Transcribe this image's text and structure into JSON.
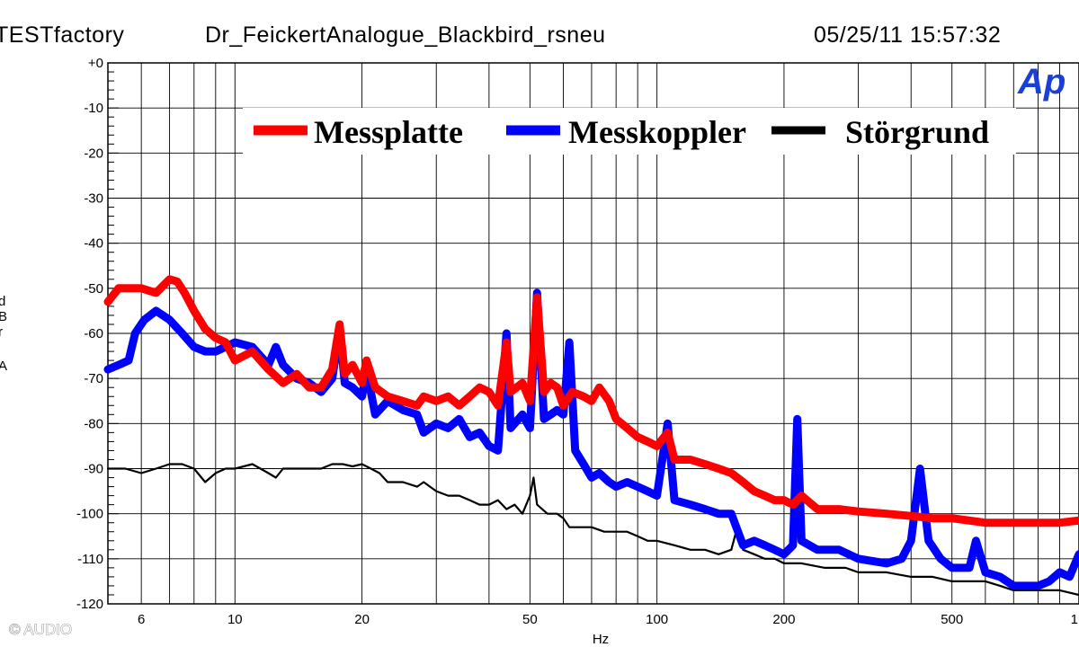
{
  "header": {
    "left": "TESTfactory",
    "center": "Dr_FeickertAnalogue_Blackbird_rsneu",
    "right": "05/25/11 15:57:32"
  },
  "logo": "Ap",
  "copyright": "© AUDIO",
  "y_label_fragment": [
    "d",
    "B",
    "r",
    "A"
  ],
  "colors": {
    "Messplatte": "#ff0000",
    "Messkoppler": "#0000ff",
    "Störgrund": "#000000"
  },
  "chart_data": {
    "type": "line",
    "title": "",
    "xlabel": "Hz",
    "ylabel": "",
    "x_scale": "log",
    "xlim": [
      5,
      1000
    ],
    "ylim": [
      -120,
      0
    ],
    "grid": true,
    "legend_position": "top-center",
    "x_tick_labels": [
      {
        "v": 6,
        "t": "6"
      },
      {
        "v": 10,
        "t": "10"
      },
      {
        "v": 20,
        "t": "20"
      },
      {
        "v": 50,
        "t": "50"
      },
      {
        "v": 100,
        "t": "100"
      },
      {
        "v": 200,
        "t": "200"
      },
      {
        "v": 500,
        "t": "500"
      },
      {
        "v": 1000,
        "t": "1"
      }
    ],
    "y_tick_labels": [
      "+0",
      "-10",
      "-20",
      "-30",
      "-40",
      "-50",
      "-60",
      "-70",
      "-80",
      "-90",
      "-100",
      "-110",
      "-120"
    ],
    "series": [
      {
        "name": "Messplatte",
        "color": "#ff0000",
        "points": [
          [
            5,
            -53
          ],
          [
            5.3,
            -50
          ],
          [
            6,
            -50
          ],
          [
            6.5,
            -51
          ],
          [
            7,
            -48
          ],
          [
            7.3,
            -48.5
          ],
          [
            7.6,
            -51
          ],
          [
            8,
            -55
          ],
          [
            8.5,
            -59
          ],
          [
            9,
            -61
          ],
          [
            9.5,
            -62
          ],
          [
            10,
            -66
          ],
          [
            11,
            -64
          ],
          [
            12,
            -68
          ],
          [
            13,
            -71
          ],
          [
            14,
            -69
          ],
          [
            15,
            -72
          ],
          [
            16,
            -72
          ],
          [
            17,
            -68
          ],
          [
            17.7,
            -58
          ],
          [
            18.2,
            -69
          ],
          [
            19,
            -67
          ],
          [
            20,
            -71
          ],
          [
            20.5,
            -66
          ],
          [
            21.5,
            -72
          ],
          [
            23,
            -74
          ],
          [
            25,
            -75
          ],
          [
            27,
            -76
          ],
          [
            28,
            -74
          ],
          [
            30,
            -75
          ],
          [
            32,
            -74
          ],
          [
            34,
            -76
          ],
          [
            36,
            -74
          ],
          [
            38,
            -72
          ],
          [
            40,
            -73
          ],
          [
            42,
            -76
          ],
          [
            44,
            -62
          ],
          [
            45,
            -73
          ],
          [
            48,
            -71
          ],
          [
            50,
            -75
          ],
          [
            52,
            -52
          ],
          [
            54,
            -73
          ],
          [
            56,
            -71
          ],
          [
            58,
            -72
          ],
          [
            60,
            -76
          ],
          [
            63,
            -73
          ],
          [
            67,
            -74
          ],
          [
            70,
            -75
          ],
          [
            73,
            -72
          ],
          [
            77,
            -75
          ],
          [
            80,
            -79
          ],
          [
            85,
            -81
          ],
          [
            90,
            -83
          ],
          [
            95,
            -84
          ],
          [
            100,
            -85
          ],
          [
            106,
            -82
          ],
          [
            110,
            -88
          ],
          [
            120,
            -88
          ],
          [
            130,
            -89
          ],
          [
            140,
            -90
          ],
          [
            150,
            -91
          ],
          [
            160,
            -93
          ],
          [
            170,
            -95
          ],
          [
            180,
            -96
          ],
          [
            190,
            -97
          ],
          [
            200,
            -97
          ],
          [
            210,
            -98
          ],
          [
            220,
            -96
          ],
          [
            240,
            -99
          ],
          [
            270,
            -99
          ],
          [
            300,
            -99.5
          ],
          [
            350,
            -100
          ],
          [
            400,
            -100.5
          ],
          [
            450,
            -101
          ],
          [
            500,
            -101
          ],
          [
            600,
            -102
          ],
          [
            700,
            -102
          ],
          [
            800,
            -102
          ],
          [
            900,
            -102
          ],
          [
            1000,
            -101.5
          ]
        ]
      },
      {
        "name": "Messkoppler",
        "color": "#0000ff",
        "points": [
          [
            5,
            -68
          ],
          [
            5.3,
            -67
          ],
          [
            5.6,
            -66
          ],
          [
            5.8,
            -60
          ],
          [
            6.1,
            -57
          ],
          [
            6.5,
            -55
          ],
          [
            7,
            -57
          ],
          [
            7.5,
            -60
          ],
          [
            8,
            -63
          ],
          [
            8.5,
            -64
          ],
          [
            9,
            -64
          ],
          [
            9.5,
            -63
          ],
          [
            10,
            -62
          ],
          [
            11,
            -63
          ],
          [
            12,
            -67
          ],
          [
            12.5,
            -63
          ],
          [
            13,
            -67
          ],
          [
            14,
            -70
          ],
          [
            15,
            -71
          ],
          [
            16,
            -73
          ],
          [
            17,
            -70
          ],
          [
            17.7,
            -59
          ],
          [
            18.2,
            -71
          ],
          [
            19,
            -72
          ],
          [
            20,
            -74
          ],
          [
            20.5,
            -68
          ],
          [
            21.5,
            -78
          ],
          [
            23,
            -75
          ],
          [
            25,
            -77
          ],
          [
            27,
            -78
          ],
          [
            28,
            -82
          ],
          [
            30,
            -80
          ],
          [
            32,
            -81
          ],
          [
            34,
            -79
          ],
          [
            36,
            -83
          ],
          [
            38,
            -82
          ],
          [
            40,
            -85
          ],
          [
            42,
            -86
          ],
          [
            44,
            -60
          ],
          [
            45,
            -81
          ],
          [
            48,
            -78
          ],
          [
            50,
            -81
          ],
          [
            52,
            -51
          ],
          [
            54,
            -79
          ],
          [
            56,
            -78
          ],
          [
            58,
            -77
          ],
          [
            60,
            -78
          ],
          [
            62,
            -62
          ],
          [
            64,
            -86
          ],
          [
            67,
            -89
          ],
          [
            70,
            -92
          ],
          [
            73,
            -91
          ],
          [
            77,
            -93
          ],
          [
            80,
            -94
          ],
          [
            85,
            -93
          ],
          [
            90,
            -94
          ],
          [
            95,
            -95
          ],
          [
            100,
            -96
          ],
          [
            106,
            -80
          ],
          [
            110,
            -97
          ],
          [
            120,
            -98
          ],
          [
            130,
            -99
          ],
          [
            140,
            -100
          ],
          [
            150,
            -100
          ],
          [
            160,
            -107
          ],
          [
            170,
            -106
          ],
          [
            180,
            -107
          ],
          [
            190,
            -108
          ],
          [
            200,
            -109
          ],
          [
            210,
            -107
          ],
          [
            215,
            -79
          ],
          [
            220,
            -106
          ],
          [
            240,
            -108
          ],
          [
            270,
            -108
          ],
          [
            300,
            -110
          ],
          [
            350,
            -111
          ],
          [
            380,
            -110
          ],
          [
            400,
            -106
          ],
          [
            420,
            -90
          ],
          [
            440,
            -106
          ],
          [
            470,
            -110
          ],
          [
            500,
            -112
          ],
          [
            550,
            -112
          ],
          [
            570,
            -106
          ],
          [
            600,
            -113
          ],
          [
            650,
            -114
          ],
          [
            700,
            -116
          ],
          [
            800,
            -116
          ],
          [
            850,
            -115
          ],
          [
            900,
            -113
          ],
          [
            950,
            -114
          ],
          [
            1000,
            -109
          ]
        ]
      },
      {
        "name": "Störgrund",
        "color": "#000000",
        "points": [
          [
            5,
            -90
          ],
          [
            5.5,
            -90
          ],
          [
            6,
            -91
          ],
          [
            6.5,
            -90
          ],
          [
            7,
            -89
          ],
          [
            7.5,
            -89
          ],
          [
            8,
            -90
          ],
          [
            8.5,
            -93
          ],
          [
            9,
            -91
          ],
          [
            9.5,
            -90
          ],
          [
            10,
            -90
          ],
          [
            11,
            -89
          ],
          [
            12,
            -91
          ],
          [
            12.5,
            -92
          ],
          [
            13,
            -90
          ],
          [
            14,
            -90
          ],
          [
            15,
            -90
          ],
          [
            16,
            -90
          ],
          [
            17,
            -89
          ],
          [
            18,
            -89
          ],
          [
            19,
            -89.5
          ],
          [
            20,
            -89
          ],
          [
            21,
            -90
          ],
          [
            22,
            -91
          ],
          [
            23,
            -93
          ],
          [
            25,
            -93
          ],
          [
            27,
            -94
          ],
          [
            28,
            -93
          ],
          [
            30,
            -95
          ],
          [
            32,
            -96
          ],
          [
            34,
            -96
          ],
          [
            36,
            -97
          ],
          [
            38,
            -98
          ],
          [
            40,
            -98
          ],
          [
            42,
            -97
          ],
          [
            44,
            -99
          ],
          [
            46,
            -98
          ],
          [
            48,
            -100
          ],
          [
            50,
            -96
          ],
          [
            51,
            -92
          ],
          [
            52,
            -98
          ],
          [
            55,
            -100
          ],
          [
            58,
            -100
          ],
          [
            60,
            -101
          ],
          [
            62,
            -103
          ],
          [
            65,
            -103
          ],
          [
            70,
            -103
          ],
          [
            75,
            -104
          ],
          [
            80,
            -104
          ],
          [
            85,
            -104
          ],
          [
            90,
            -105
          ],
          [
            95,
            -106
          ],
          [
            100,
            -106
          ],
          [
            110,
            -107
          ],
          [
            120,
            -108
          ],
          [
            130,
            -108
          ],
          [
            140,
            -109
          ],
          [
            150,
            -108
          ],
          [
            155,
            -103
          ],
          [
            160,
            -108
          ],
          [
            170,
            -109
          ],
          [
            180,
            -110
          ],
          [
            190,
            -110
          ],
          [
            200,
            -111
          ],
          [
            220,
            -111
          ],
          [
            250,
            -112
          ],
          [
            280,
            -112
          ],
          [
            300,
            -113
          ],
          [
            350,
            -113
          ],
          [
            400,
            -114
          ],
          [
            450,
            -114
          ],
          [
            500,
            -115
          ],
          [
            550,
            -115
          ],
          [
            600,
            -115
          ],
          [
            650,
            -116
          ],
          [
            700,
            -117
          ],
          [
            800,
            -117
          ],
          [
            900,
            -117
          ],
          [
            1000,
            -118
          ]
        ]
      }
    ]
  }
}
